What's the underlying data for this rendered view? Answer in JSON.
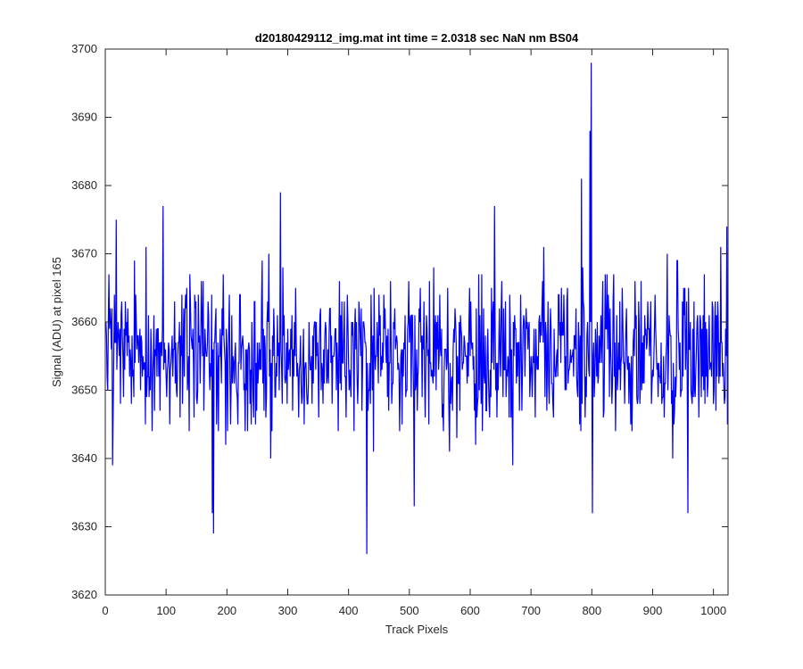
{
  "chart_data": {
    "type": "line",
    "title": "d20180429112_img.mat int time = 2.0318 sec  NaN nm BS04",
    "xlabel": "Track Pixels",
    "ylabel": "Signal (ADU) at pixel 165",
    "xlim": [
      0,
      1024
    ],
    "ylim": [
      3620,
      3700
    ],
    "xticks": [
      0,
      100,
      200,
      300,
      400,
      500,
      600,
      700,
      800,
      900,
      1000
    ],
    "yticks": [
      3620,
      3630,
      3640,
      3650,
      3660,
      3670,
      3680,
      3690,
      3700
    ],
    "grid": false,
    "box": true,
    "series": [
      {
        "color": "#0000ff",
        "x_start": 1,
        "x_step": 1,
        "count": 1024,
        "mean": 3655,
        "min": 3626,
        "max": 3698,
        "notable_points": [
          {
            "x": 12,
            "y": 3639
          },
          {
            "x": 18,
            "y": 3675
          },
          {
            "x": 95,
            "y": 3677
          },
          {
            "x": 176,
            "y": 3632
          },
          {
            "x": 178,
            "y": 3629
          },
          {
            "x": 288,
            "y": 3679
          },
          {
            "x": 430,
            "y": 3626
          },
          {
            "x": 508,
            "y": 3633
          },
          {
            "x": 640,
            "y": 3677
          },
          {
            "x": 783,
            "y": 3681
          },
          {
            "x": 797,
            "y": 3688
          },
          {
            "x": 799,
            "y": 3698
          },
          {
            "x": 801,
            "y": 3632
          },
          {
            "x": 958,
            "y": 3632
          },
          {
            "x": 1022,
            "y": 3674
          }
        ]
      }
    ]
  },
  "colors": {
    "line": "#0000ff",
    "axes": "#262626",
    "background": "#ffffff"
  }
}
